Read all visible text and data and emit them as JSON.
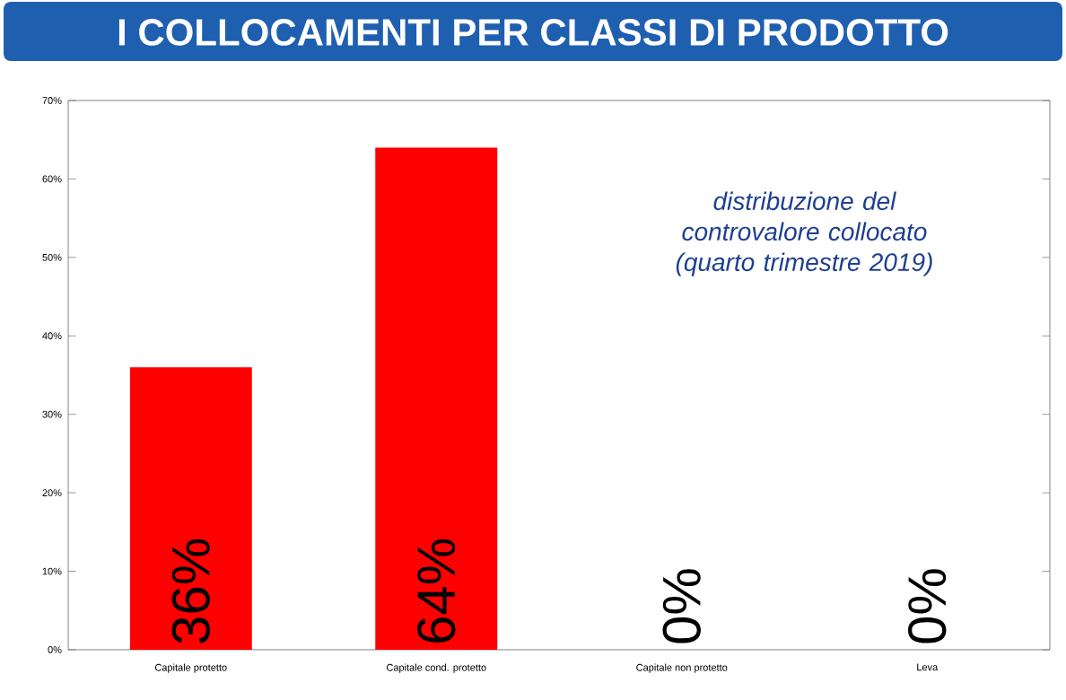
{
  "chart_data": {
    "type": "bar",
    "title": "I COLLOCAMENTI PER CLASSI DI PRODOTTO",
    "categories": [
      "Capitale protetto",
      "Capitale cond. protetto",
      "Capitale non protetto",
      "Leva"
    ],
    "values": [
      36,
      64,
      0,
      0
    ],
    "value_labels": [
      "36%",
      "64%",
      "0%",
      "0%"
    ],
    "color": "#ff0000",
    "ylim": [
      0,
      70
    ],
    "yticks": [
      {
        "value": 0,
        "label": "0%"
      },
      {
        "value": 10,
        "label": "10%"
      },
      {
        "value": 20,
        "label": "20%"
      },
      {
        "value": 30,
        "label": "30%"
      },
      {
        "value": 40,
        "label": "40%"
      },
      {
        "value": 50,
        "label": "50%"
      },
      {
        "value": 60,
        "label": "60%"
      },
      {
        "value": 70,
        "label": "70%"
      }
    ],
    "annotations": [
      "distribuzione del controvalore collocato (quarto trimestre 2019)"
    ],
    "grid": false
  }
}
